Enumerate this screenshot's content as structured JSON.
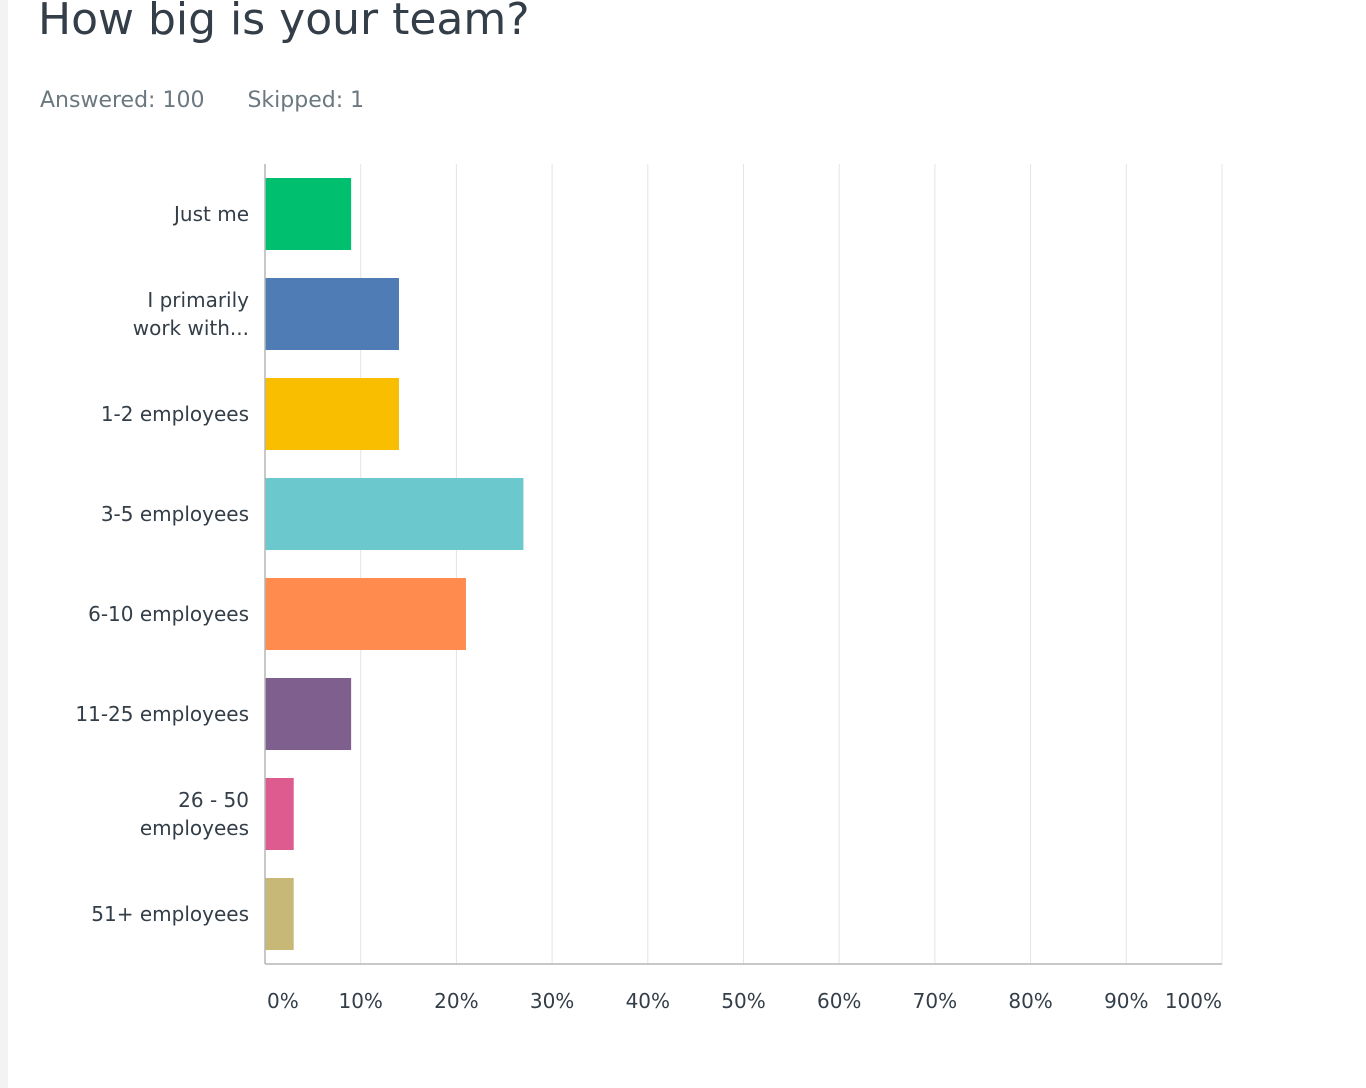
{
  "question": {
    "title": "How big is your team?",
    "answered_label": "Answered: 100",
    "skipped_label": "Skipped: 1"
  },
  "chart_data": {
    "type": "bar",
    "orientation": "horizontal",
    "title": "How big is your team?",
    "xlabel": "",
    "ylabel": "",
    "categories": [
      "Just me",
      "I primarily work with...",
      "1-2 employees",
      "3-5 employees",
      "6-10 employees",
      "11-25 employees",
      "26 - 50 employees",
      "51+ employees"
    ],
    "category_lines": [
      [
        "Just me"
      ],
      [
        "I primarily",
        "work with..."
      ],
      [
        "1-2 employees"
      ],
      [
        "3-5 employees"
      ],
      [
        "6-10 employees"
      ],
      [
        "11-25 employees"
      ],
      [
        "26 - 50",
        "employees"
      ],
      [
        "51+ employees"
      ]
    ],
    "values": [
      9,
      14,
      14,
      27,
      21,
      9,
      3,
      3
    ],
    "unit": "%",
    "xlim": [
      0,
      100
    ],
    "ticks": [
      0,
      10,
      20,
      30,
      40,
      50,
      60,
      70,
      80,
      90,
      100
    ],
    "tick_labels": [
      "0%",
      "10%",
      "20%",
      "30%",
      "40%",
      "50%",
      "60%",
      "70%",
      "80%",
      "90%",
      "100%"
    ],
    "colors": [
      "#00bf6f",
      "#507cb6",
      "#f9be00",
      "#6bc8cd",
      "#ff8b4f",
      "#7f5f8d",
      "#de5b8f",
      "#c8b878"
    ],
    "grid": true,
    "legend": "none"
  }
}
